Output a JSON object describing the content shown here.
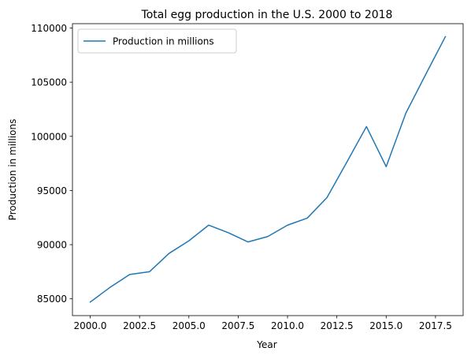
{
  "chart_data": {
    "type": "line",
    "title": "Total egg production in the U.S. 2000 to 2018",
    "xlabel": "Year",
    "ylabel": "Production in millions",
    "xlim": [
      1999.1,
      2018.9
    ],
    "ylim": [
      83450,
      110400
    ],
    "x_ticks": [
      2000.0,
      2002.5,
      2005.0,
      2007.5,
      2010.0,
      2012.5,
      2015.0,
      2017.5
    ],
    "x_tick_labels": [
      "2000.0",
      "2002.5",
      "2005.0",
      "2007.5",
      "2010.0",
      "2012.5",
      "2015.0",
      "2017.5"
    ],
    "y_ticks": [
      85000,
      90000,
      95000,
      100000,
      105000,
      110000
    ],
    "y_tick_labels": [
      "85000",
      "90000",
      "95000",
      "100000",
      "105000",
      "110000"
    ],
    "grid": false,
    "legend_position": "top-left",
    "series": [
      {
        "name": "Production in millions",
        "color": "#1f77b4",
        "x": [
          2000,
          2001,
          2002,
          2003,
          2004,
          2005,
          2006,
          2007,
          2008,
          2009,
          2010,
          2011,
          2012,
          2013,
          2014,
          2015,
          2016,
          2017,
          2018
        ],
        "y": [
          84700,
          86050,
          87250,
          87500,
          89200,
          90350,
          91800,
          91100,
          90250,
          90750,
          91800,
          92450,
          94350,
          97600,
          100900,
          97200,
          102150,
          105700,
          109200
        ]
      }
    ]
  }
}
